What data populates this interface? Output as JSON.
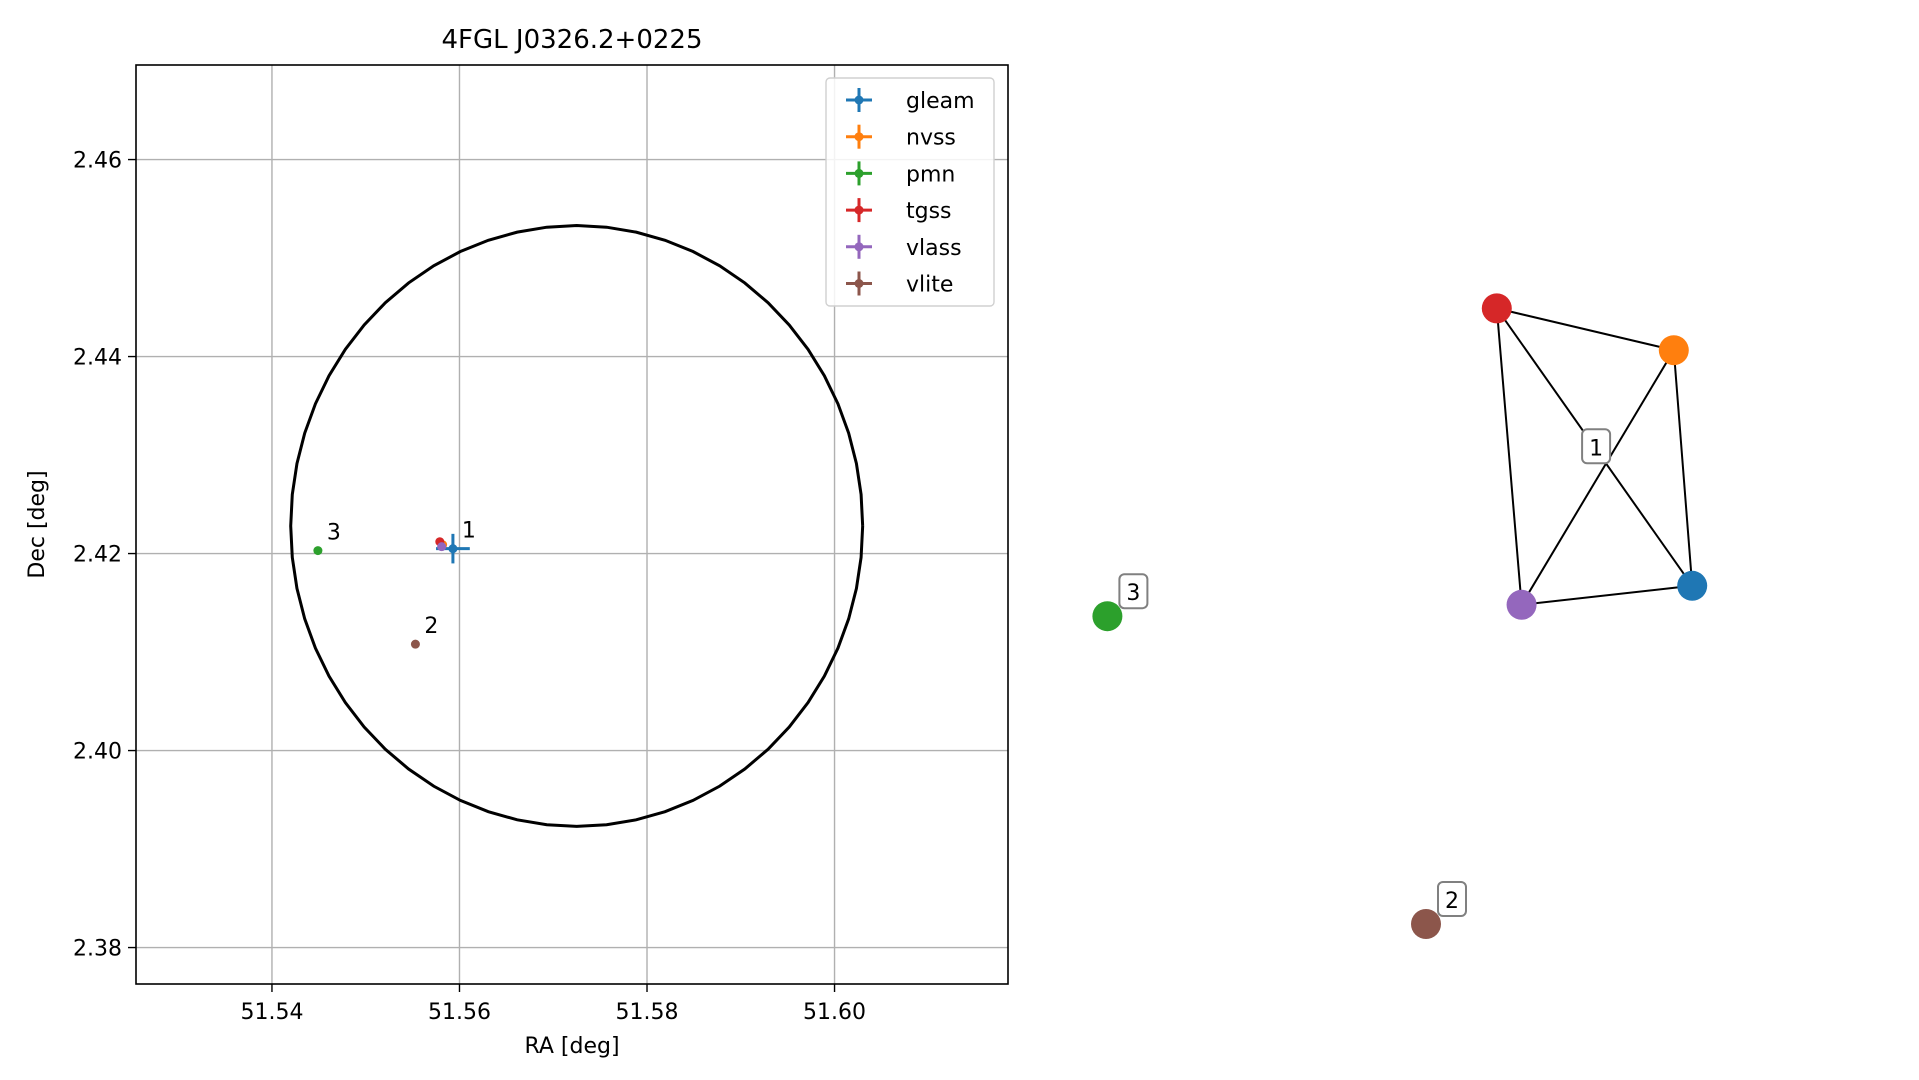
{
  "chart_data": [
    {
      "type": "scatter",
      "title": "4FGL J0326.2+0225",
      "xlabel": "RA [deg]",
      "ylabel": "Dec [deg]",
      "xlim": [
        51.5255,
        51.6185
      ],
      "ylim": [
        2.3763,
        2.4696
      ],
      "xticks": [
        51.54,
        51.56,
        51.58,
        51.6
      ],
      "xtick_labels": [
        "51.54",
        "51.56",
        "51.58",
        "51.60"
      ],
      "yticks": [
        2.38,
        2.4,
        2.42,
        2.44,
        2.46
      ],
      "ytick_labels": [
        "2.38",
        "2.40",
        "2.42",
        "2.44",
        "2.46"
      ],
      "grid": true,
      "legend_position": "top-right",
      "series": [
        {
          "name": "gleam",
          "color": "#1f77b4",
          "points": [
            {
              "x": 51.5593,
              "y": 2.4205,
              "xerr": 0.0018,
              "yerr": 0.0015
            }
          ]
        },
        {
          "name": "nvss",
          "color": "#ff7f0e",
          "points": [
            {
              "x": 51.5582,
              "y": 2.4209,
              "xerr": 0.0001,
              "yerr": 0.0001
            }
          ]
        },
        {
          "name": "pmn",
          "color": "#2ca02c",
          "points": [
            {
              "x": 51.5449,
              "y": 2.4203,
              "xerr": 0.0001,
              "yerr": 0.0001
            }
          ]
        },
        {
          "name": "tgss",
          "color": "#d62728",
          "points": [
            {
              "x": 51.5579,
              "y": 2.4212,
              "xerr": 0.0001,
              "yerr": 0.0001
            }
          ]
        },
        {
          "name": "vlass",
          "color": "#9467bd",
          "points": [
            {
              "x": 51.5581,
              "y": 2.4207,
              "xerr": 0.0001,
              "yerr": 0.0001
            }
          ]
        },
        {
          "name": "vlite",
          "color": "#8c564b",
          "points": [
            {
              "x": 51.5553,
              "y": 2.4108,
              "xerr": 0.0001,
              "yerr": 0.0001
            }
          ]
        }
      ],
      "circle": {
        "ra": 51.5725,
        "dec": 2.4228,
        "radius": 0.0305,
        "color": "#000000"
      },
      "annotations": [
        {
          "text": "1",
          "x": 51.5593,
          "y": 2.4205
        },
        {
          "text": "2",
          "x": 51.5553,
          "y": 2.4108
        },
        {
          "text": "3",
          "x": 51.5449,
          "y": 2.4203
        }
      ]
    },
    {
      "type": "network",
      "nodes": [
        {
          "id": "gleam",
          "color": "#1f77b4",
          "x": 0.876,
          "y": 0.545
        },
        {
          "id": "nvss",
          "color": "#ff7f0e",
          "x": 0.85,
          "y": 0.855
        },
        {
          "id": "pmn",
          "color": "#2ca02c",
          "x": 0.05,
          "y": 0.505
        },
        {
          "id": "tgss",
          "color": "#d62728",
          "x": 0.6,
          "y": 0.91
        },
        {
          "id": "vlass",
          "color": "#9467bd",
          "x": 0.635,
          "y": 0.52
        },
        {
          "id": "vlite",
          "color": "#8c564b",
          "x": 0.5,
          "y": 0.1
        }
      ],
      "edges": [
        [
          "tgss",
          "nvss"
        ],
        [
          "tgss",
          "gleam"
        ],
        [
          "tgss",
          "vlass"
        ],
        [
          "nvss",
          "vlass"
        ],
        [
          "nvss",
          "gleam"
        ],
        [
          "vlass",
          "gleam"
        ]
      ],
      "labels": [
        {
          "text": "1",
          "nodes": [
            "gleam",
            "nvss",
            "tgss",
            "vlass"
          ]
        },
        {
          "text": "2",
          "nodes": [
            "vlite"
          ]
        },
        {
          "text": "3",
          "nodes": [
            "pmn"
          ]
        }
      ]
    }
  ]
}
